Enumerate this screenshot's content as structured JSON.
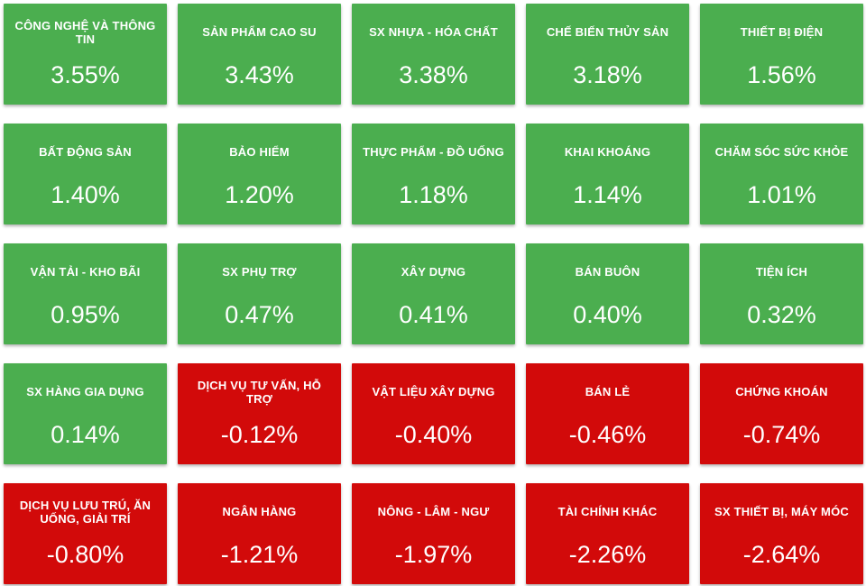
{
  "colors": {
    "positive": "#4BAE4F",
    "negative": "#D20A0A",
    "text": "#FFFFFF",
    "background": "#FFFFFF"
  },
  "tiles": [
    {
      "label": "CÔNG NGHỆ VÀ THÔNG TIN",
      "value_label": "3.55%",
      "value": 3.55,
      "direction": "up"
    },
    {
      "label": "SẢN PHẨM CAO SU",
      "value_label": "3.43%",
      "value": 3.43,
      "direction": "up"
    },
    {
      "label": "SX NHỰA - HÓA CHẤT",
      "value_label": "3.38%",
      "value": 3.38,
      "direction": "up"
    },
    {
      "label": "CHẾ BIẾN THỦY SẢN",
      "value_label": "3.18%",
      "value": 3.18,
      "direction": "up"
    },
    {
      "label": "THIẾT BỊ ĐIỆN",
      "value_label": "1.56%",
      "value": 1.56,
      "direction": "up"
    },
    {
      "label": "BẤT ĐỘNG SẢN",
      "value_label": "1.40%",
      "value": 1.4,
      "direction": "up"
    },
    {
      "label": "BẢO HIỂM",
      "value_label": "1.20%",
      "value": 1.2,
      "direction": "up"
    },
    {
      "label": "THỰC PHẨM - ĐỒ UỐNG",
      "value_label": "1.18%",
      "value": 1.18,
      "direction": "up"
    },
    {
      "label": "KHAI KHOÁNG",
      "value_label": "1.14%",
      "value": 1.14,
      "direction": "up"
    },
    {
      "label": "CHĂM SÓC SỨC KHỎE",
      "value_label": "1.01%",
      "value": 1.01,
      "direction": "up"
    },
    {
      "label": "VẬN TẢI - KHO BÃI",
      "value_label": "0.95%",
      "value": 0.95,
      "direction": "up"
    },
    {
      "label": "SX PHỤ TRỢ",
      "value_label": "0.47%",
      "value": 0.47,
      "direction": "up"
    },
    {
      "label": "XÂY DỰNG",
      "value_label": "0.41%",
      "value": 0.41,
      "direction": "up"
    },
    {
      "label": "BÁN BUÔN",
      "value_label": "0.40%",
      "value": 0.4,
      "direction": "up"
    },
    {
      "label": "TIỆN ÍCH",
      "value_label": "0.32%",
      "value": 0.32,
      "direction": "up"
    },
    {
      "label": "SX HÀNG GIA DỤNG",
      "value_label": "0.14%",
      "value": 0.14,
      "direction": "up"
    },
    {
      "label": "DỊCH VỤ TƯ VẤN, HỖ TRỢ",
      "value_label": "-0.12%",
      "value": -0.12,
      "direction": "down"
    },
    {
      "label": "VẬT LIỆU XÂY DỰNG",
      "value_label": "-0.40%",
      "value": -0.4,
      "direction": "down"
    },
    {
      "label": "BÁN LẺ",
      "value_label": "-0.46%",
      "value": -0.46,
      "direction": "down"
    },
    {
      "label": "CHỨNG KHOÁN",
      "value_label": "-0.74%",
      "value": -0.74,
      "direction": "down"
    },
    {
      "label": "DỊCH VỤ LƯU TRÚ, ĂN UỐNG, GIẢI TRÍ",
      "value_label": "-0.80%",
      "value": -0.8,
      "direction": "down"
    },
    {
      "label": "NGÂN HÀNG",
      "value_label": "-1.21%",
      "value": -1.21,
      "direction": "down"
    },
    {
      "label": "NÔNG - LÂM - NGƯ",
      "value_label": "-1.97%",
      "value": -1.97,
      "direction": "down"
    },
    {
      "label": "TÀI CHÍNH KHÁC",
      "value_label": "-2.26%",
      "value": -2.26,
      "direction": "down"
    },
    {
      "label": "SX THIẾT BỊ, MÁY MÓC",
      "value_label": "-2.64%",
      "value": -2.64,
      "direction": "down"
    }
  ],
  "chart_data": {
    "type": "heatmap",
    "title": "",
    "grid": [
      5,
      5
    ],
    "categories": [
      "CÔNG NGHỆ VÀ THÔNG TIN",
      "SẢN PHẨM CAO SU",
      "SX NHỰA - HÓA CHẤT",
      "CHẾ BIẾN THỦY SẢN",
      "THIẾT BỊ ĐIỆN",
      "BẤT ĐỘNG SẢN",
      "BẢO HIỂM",
      "THỰC PHẨM - ĐỒ UỐNG",
      "KHAI KHOÁNG",
      "CHĂM SÓC SỨC KHỎE",
      "VẬN TẢI - KHO BÃI",
      "SX PHỤ TRỢ",
      "XÂY DỰNG",
      "BÁN BUÔN",
      "TIỆN ÍCH",
      "SX HÀNG GIA DỤNG",
      "DỊCH VỤ TƯ VẤN, HỖ TRỢ",
      "VẬT LIỆU XÂY DỰNG",
      "BÁN LẺ",
      "CHỨNG KHOÁN",
      "DỊCH VỤ LƯU TRÚ, ĂN UỐNG, GIẢI TRÍ",
      "NGÂN HÀNG",
      "NÔNG - LÂM - NGƯ",
      "TÀI CHÍNH KHÁC",
      "SX THIẾT BỊ, MÁY MÓC"
    ],
    "values": [
      3.55,
      3.43,
      3.38,
      3.18,
      1.56,
      1.4,
      1.2,
      1.18,
      1.14,
      1.01,
      0.95,
      0.47,
      0.41,
      0.4,
      0.32,
      0.14,
      -0.12,
      -0.4,
      -0.46,
      -0.74,
      -0.8,
      -1.21,
      -1.97,
      -2.26,
      -2.64
    ],
    "value_format": "percent",
    "color_rule": "green if value >= 0 else red",
    "positive_color": "#4BAE4F",
    "negative_color": "#D20A0A",
    "sort_order": "descending left-to-right, top-to-bottom"
  }
}
